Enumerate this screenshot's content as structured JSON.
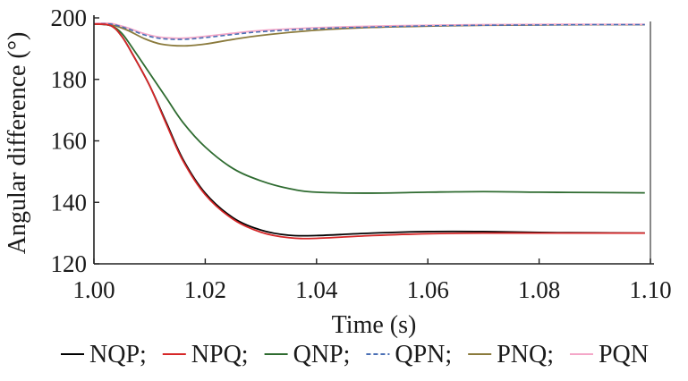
{
  "chart_data": {
    "type": "line",
    "xlabel": "Time (s)",
    "ylabel": "Angular difference (°)",
    "xlim": [
      1.0,
      1.1
    ],
    "ylim": [
      120,
      200
    ],
    "xticks": [
      "1.00",
      "1.02",
      "1.04",
      "1.06",
      "1.08",
      "1.10"
    ],
    "yticks": [
      "120",
      "140",
      "160",
      "180",
      "200"
    ],
    "grid": false,
    "legend_position": "bottom",
    "series": [
      {
        "name": "NQP",
        "color": "#000000",
        "dash": "solid",
        "x": [
          1.0,
          1.003,
          1.005,
          1.007,
          1.01,
          1.013,
          1.016,
          1.02,
          1.025,
          1.03,
          1.035,
          1.04,
          1.05,
          1.06,
          1.07,
          1.08,
          1.09,
          1.099
        ],
        "y": [
          198,
          197.5,
          194,
          188,
          178,
          166,
          154,
          143,
          135,
          131,
          129.3,
          129.2,
          130,
          130.5,
          130.5,
          130.2,
          130.1,
          130
        ]
      },
      {
        "name": "NPQ",
        "color": "#d62728",
        "dash": "solid",
        "x": [
          1.0,
          1.003,
          1.005,
          1.007,
          1.01,
          1.013,
          1.016,
          1.02,
          1.025,
          1.03,
          1.035,
          1.04,
          1.05,
          1.06,
          1.07,
          1.08,
          1.09,
          1.099
        ],
        "y": [
          198,
          197.5,
          194,
          188,
          178,
          165.5,
          153.5,
          142.5,
          134.5,
          130.3,
          128.5,
          128.3,
          129.2,
          129.8,
          130,
          130,
          130,
          130
        ]
      },
      {
        "name": "QNP",
        "color": "#2e6b30",
        "dash": "solid",
        "x": [
          1.0,
          1.003,
          1.005,
          1.007,
          1.01,
          1.013,
          1.016,
          1.02,
          1.025,
          1.03,
          1.035,
          1.04,
          1.05,
          1.06,
          1.07,
          1.08,
          1.09,
          1.099
        ],
        "y": [
          198,
          197.5,
          195,
          190,
          182,
          174,
          166,
          158,
          151,
          147,
          144.5,
          143.3,
          143,
          143.3,
          143.5,
          143.3,
          143.2,
          143.1
        ]
      },
      {
        "name": "QPN",
        "color": "#4a6fb5",
        "dash": "dashed",
        "x": [
          1.0,
          1.003,
          1.006,
          1.009,
          1.012,
          1.016,
          1.02,
          1.025,
          1.03,
          1.04,
          1.05,
          1.06,
          1.07,
          1.08,
          1.09,
          1.099
        ],
        "y": [
          198,
          198,
          196.5,
          194.5,
          193.3,
          193,
          193.6,
          194.6,
          195.5,
          196.5,
          197,
          197.4,
          197.6,
          197.7,
          197.8,
          197.8
        ]
      },
      {
        "name": "PNQ",
        "color": "#8a7a3c",
        "dash": "solid",
        "x": [
          1.0,
          1.003,
          1.006,
          1.009,
          1.012,
          1.016,
          1.02,
          1.025,
          1.03,
          1.04,
          1.05,
          1.06,
          1.07,
          1.08,
          1.09,
          1.099
        ],
        "y": [
          198,
          197.8,
          196,
          193.3,
          191.5,
          190.9,
          191.5,
          193,
          194.3,
          196,
          196.9,
          197.3,
          197.6,
          197.7,
          197.8,
          197.8
        ]
      },
      {
        "name": "PQN",
        "color": "#f4a7c8",
        "dash": "solid",
        "x": [
          1.0,
          1.003,
          1.006,
          1.009,
          1.012,
          1.016,
          1.02,
          1.025,
          1.03,
          1.04,
          1.05,
          1.06,
          1.07,
          1.08,
          1.09,
          1.099
        ],
        "y": [
          198.2,
          198.2,
          196.8,
          194.9,
          193.7,
          193.4,
          194,
          195,
          195.9,
          196.8,
          197.3,
          197.6,
          197.8,
          197.9,
          197.9,
          197.9
        ]
      }
    ]
  }
}
